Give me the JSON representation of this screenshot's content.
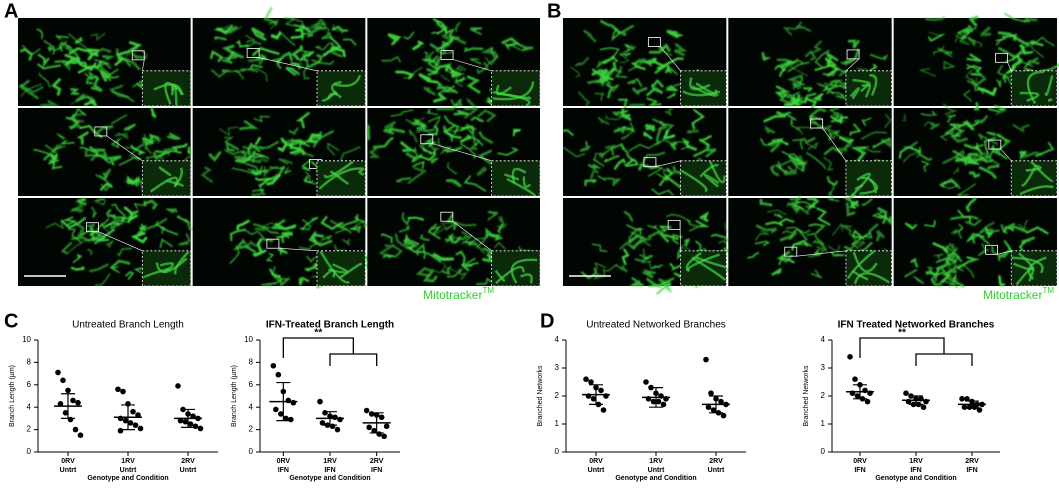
{
  "panels": {
    "A": "A",
    "B": "B",
    "C": "C",
    "D": "D"
  },
  "stain": {
    "label": "Mitotracker",
    "mark": "TM"
  },
  "chart_data": [
    {
      "type": "dotplot",
      "title": "Untreated Branch Length",
      "ylabel": "Branch Length (µm)",
      "xlabel": "Genotype and Condition",
      "categories": [
        [
          "0RV",
          "Untrt"
        ],
        [
          "1RV",
          "Untrt"
        ],
        [
          "2RV",
          "Untrt"
        ]
      ],
      "points": [
        [
          7.1,
          6.4,
          5.5,
          4.6,
          4.4,
          4.3,
          3.5,
          2.9,
          2.0,
          1.5
        ],
        [
          5.6,
          5.4,
          4.3,
          3.6,
          3.3,
          3.0,
          2.8,
          2.6,
          2.4,
          2.1,
          1.9
        ],
        [
          5.9,
          3.8,
          3.4,
          3.2,
          3.0,
          2.8,
          2.7,
          2.5,
          2.3,
          2.1
        ]
      ],
      "mean": [
        4.1,
        3.1,
        3.0
      ],
      "error": [
        1.1,
        1.1,
        0.8
      ],
      "color": "#000000",
      "ylim": [
        0,
        10
      ],
      "yticks": [
        0,
        2,
        4,
        6,
        8,
        10
      ]
    },
    {
      "type": "dotplot",
      "title": "IFN-Treated Branch Length",
      "ylabel": "Branch Length (µm)",
      "xlabel": "Genotype and  Condition",
      "categories": [
        [
          "0RV",
          "IFN"
        ],
        [
          "1RV",
          "IFN"
        ],
        [
          "2RV",
          "IFN"
        ]
      ],
      "points": [
        [
          7.7,
          6.9,
          5.4,
          4.6,
          4.4,
          3.8,
          3.4,
          3.0,
          2.9
        ],
        [
          4.5,
          3.5,
          3.2,
          3.1,
          2.9,
          2.6,
          2.4,
          2.3,
          2.0
        ],
        [
          3.7,
          3.4,
          3.3,
          3.1,
          2.3,
          2.2,
          1.9,
          1.6,
          1.4
        ]
      ],
      "mean": [
        4.5,
        3.0,
        2.6
      ],
      "error": [
        1.7,
        0.6,
        0.9
      ],
      "color": "#000000",
      "ylim": [
        0,
        10
      ],
      "yticks": [
        0,
        2,
        4,
        6,
        8,
        10
      ],
      "significance": "**"
    },
    {
      "type": "dotplot",
      "title": "Untreated Networked Branches",
      "ylabel": "Branched Networks",
      "xlabel": "Genotype and Condition",
      "categories": [
        [
          "0RV",
          "Untrt"
        ],
        [
          "1RV",
          "Untrt"
        ],
        [
          "2RV",
          "Untrt"
        ]
      ],
      "points": [
        [
          2.6,
          2.5,
          2.3,
          2.2,
          2.0,
          2.0,
          1.9,
          1.7,
          1.5
        ],
        [
          2.5,
          2.3,
          2.1,
          2.0,
          1.9,
          1.9,
          1.8,
          1.8,
          1.7
        ],
        [
          3.3,
          2.1,
          1.9,
          1.8,
          1.7,
          1.6,
          1.5,
          1.4,
          1.3
        ]
      ],
      "mean": [
        2.05,
        1.95,
        1.7
      ],
      "error": [
        0.35,
        0.35,
        0.3
      ],
      "color": "#000000",
      "ylim": [
        0,
        4
      ],
      "yticks": [
        0,
        1,
        2,
        3,
        4
      ]
    },
    {
      "type": "dotplot",
      "title": "IFN Treated Networked Branches",
      "ylabel": "Branched Networks",
      "xlabel": "Genotype and  Condition",
      "categories": [
        [
          "0RV",
          "IFN"
        ],
        [
          "1RV",
          "IFN"
        ],
        [
          "2RV",
          "IFN"
        ]
      ],
      "points": [
        [
          3.4,
          2.6,
          2.4,
          2.2,
          2.1,
          2.1,
          2.0,
          1.9,
          1.8
        ],
        [
          2.1,
          2.0,
          1.9,
          1.9,
          1.8,
          1.8,
          1.7,
          1.7,
          1.6
        ],
        [
          1.9,
          1.9,
          1.8,
          1.7,
          1.7,
          1.6,
          1.6,
          1.6,
          1.5
        ]
      ],
      "mean": [
        2.15,
        1.85,
        1.7
      ],
      "error": [
        0.25,
        0.15,
        0.12
      ],
      "color": "#000000",
      "ylim": [
        0,
        4
      ],
      "yticks": [
        0,
        1,
        2,
        3,
        4
      ],
      "significance": "**"
    }
  ]
}
